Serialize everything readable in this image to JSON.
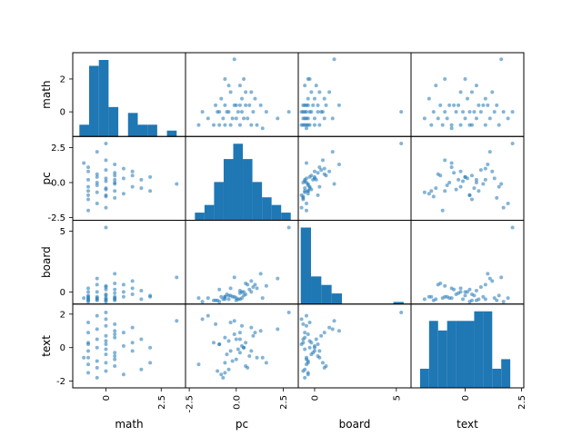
{
  "chart_data": {
    "type": "scatter-matrix",
    "variables": [
      "math",
      "pc",
      "board",
      "text"
    ],
    "colors": {
      "marker": "#1f77b4"
    },
    "grid": false,
    "axes": {
      "math": {
        "range": [
          -1.5,
          3.6
        ],
        "ticks": [
          0,
          2.5
        ],
        "tick_labels": [
          "0",
          "2.5"
        ],
        "y_ticks": [
          0,
          2
        ],
        "y_tick_labels": [
          "0",
          "2"
        ]
      },
      "pc": {
        "range": [
          -2.7,
          3.3
        ],
        "ticks": [
          -2.5,
          0,
          2.5
        ],
        "tick_labels": [
          "-2.5",
          "0.0",
          "2.5"
        ],
        "y_ticks": [
          -2.5,
          0,
          2.5
        ],
        "y_tick_labels": [
          "-2.5",
          "0.0",
          "2.5"
        ]
      },
      "board": {
        "range": [
          -1.0,
          5.9
        ],
        "ticks": [
          0,
          5
        ],
        "tick_labels": [
          "0",
          "5"
        ],
        "y_ticks": [
          0,
          5
        ],
        "y_tick_labels": [
          "0",
          "5"
        ]
      },
      "text": {
        "range": [
          -2.4,
          2.6
        ],
        "ticks": [
          -2,
          0,
          2
        ],
        "tick_labels": [
          "-2",
          "0",
          "2"
        ],
        "y_ticks": [
          -2,
          0,
          2
        ],
        "y_tick_labels": [
          "-2",
          "0",
          "2"
        ],
        "x_ticks": [
          0,
          2.5
        ],
        "x_tick_labels": [
          "0",
          "2.5"
        ]
      }
    },
    "histograms": {
      "math": {
        "bins": [
          -1.2,
          -0.76,
          -0.32,
          0.12,
          0.56,
          1.0,
          1.44,
          1.88,
          2.32,
          2.76,
          3.2
        ],
        "counts": [
          2,
          12,
          13,
          5,
          0,
          4,
          2,
          2,
          0,
          1
        ]
      },
      "pc": {
        "bins": [
          -2.2,
          -1.69,
          -1.18,
          -0.67,
          -0.16,
          0.35,
          0.86,
          1.37,
          1.88,
          2.39,
          2.9
        ],
        "counts": [
          1,
          2,
          5,
          8,
          10,
          8,
          5,
          3,
          2,
          1
        ]
      },
      "board": {
        "bins": [
          -0.85,
          -0.22,
          0.41,
          1.04,
          1.67,
          2.3,
          2.93,
          3.56,
          4.19,
          4.82,
          5.45
        ],
        "counts": [
          36,
          13,
          9,
          5,
          0,
          0,
          0,
          0,
          0,
          1
        ]
      },
      "text": {
        "bins": [
          -2.0,
          -1.6,
          -1.2,
          -0.8,
          -0.4,
          0.0,
          0.4,
          0.8,
          1.2,
          1.6,
          2.0
        ],
        "counts": [
          2,
          7,
          6,
          7,
          7,
          7,
          8,
          8,
          2,
          3
        ]
      }
    },
    "points": {
      "math": [
        -0.8,
        -0.8,
        -0.8,
        -0.8,
        -0.8,
        -0.8,
        -0.8,
        -0.8,
        -0.4,
        -0.4,
        -0.4,
        -0.4,
        -0.4,
        -0.4,
        -0.4,
        0.0,
        0.0,
        0.0,
        0.0,
        0.0,
        0.0,
        0.0,
        0.0,
        0.0,
        0.4,
        0.4,
        0.4,
        0.4,
        0.4,
        0.4,
        0.4,
        0.4,
        0.8,
        0.8,
        0.8,
        1.2,
        1.2,
        1.2,
        1.6,
        1.6,
        2.0,
        2.0,
        3.2,
        -1.0,
        0.0
      ],
      "pc": [
        -2.0,
        -1.2,
        -0.6,
        0.2,
        0.8,
        -0.3,
        1.1,
        -0.9,
        -1.5,
        0.6,
        0.0,
        -0.2,
        2.2,
        -0.7,
        0.4,
        2.8,
        -0.5,
        0.9,
        -1.0,
        0.3,
        1.6,
        -0.4,
        0.1,
        -1.8,
        0.7,
        -0.1,
        1.3,
        0.5,
        -0.6,
        0.2,
        -1.1,
        0.0,
        0.3,
        -0.8,
        1.0,
        0.5,
        -0.3,
        0.8,
        -0.4,
        0.2,
        -0.6,
        0.4,
        -0.1,
        1.4,
        -0.9
      ],
      "board": [
        -0.5,
        -0.7,
        -0.4,
        -0.6,
        0.0,
        -0.3,
        0.3,
        -0.8,
        -0.5,
        0.6,
        -0.7,
        -0.4,
        1.1,
        -0.6,
        0.0,
        5.3,
        -0.2,
        0.4,
        -0.7,
        -0.5,
        0.5,
        -0.3,
        -0.6,
        -0.8,
        0.2,
        -0.4,
        1.5,
        0.7,
        -0.6,
        -0.1,
        -0.7,
        -0.5,
        0.0,
        -0.4,
        0.6,
        -0.2,
        0.3,
        0.9,
        -0.6,
        0.1,
        -0.4,
        -0.3,
        1.2,
        -0.5,
        0.2
      ],
      "text": [
        -1.0,
        0.3,
        -1.5,
        0.9,
        -0.2,
        1.5,
        -0.6,
        0.2,
        1.9,
        -1.2,
        0.5,
        -0.8,
        1.1,
        -1.8,
        0.0,
        2.1,
        -0.4,
        0.7,
        -1.4,
        1.3,
        -0.9,
        0.4,
        -0.1,
        1.7,
        -0.5,
        0.8,
        1.0,
        -1.1,
        0.6,
        -0.3,
        1.4,
        -0.7,
        0.1,
        -1.6,
        0.9,
        0.3,
        -0.2,
        1.2,
        -1.3,
        0.5,
        -0.9,
        0.0,
        1.6,
        -0.6,
        0.2
      ]
    }
  }
}
